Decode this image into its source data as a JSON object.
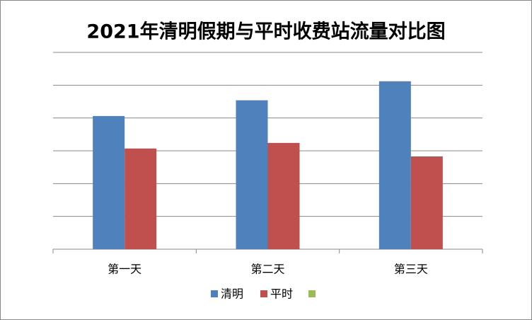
{
  "chart_data": {
    "type": "bar",
    "title": "2021年清明假期与平时收费站流量对比图",
    "categories": [
      "第一天",
      "第二天",
      "第三天"
    ],
    "series": [
      {
        "name": "清明",
        "color": "#4f81bd",
        "values": [
          4.06,
          4.54,
          5.12
        ]
      },
      {
        "name": "平时",
        "color": "#c0504d",
        "values": [
          3.07,
          3.24,
          2.83
        ]
      },
      {
        "name": null,
        "color": "#9bbb59",
        "values": [
          null,
          null,
          null
        ]
      }
    ],
    "ylim": [
      0,
      6
    ],
    "yticks": [
      0,
      1,
      2,
      3,
      4,
      5,
      6
    ],
    "grid": true
  }
}
